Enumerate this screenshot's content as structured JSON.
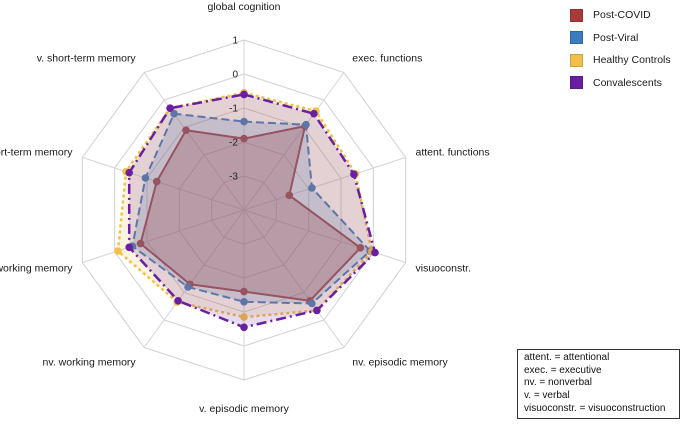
{
  "chart_data": {
    "type": "radar",
    "axes": [
      "global cognition",
      "exec. functions",
      "attent. functions",
      "visuoconstr.",
      "nv. episodic memory",
      "v. episodic memory",
      "nv. working memory",
      "v. working memory",
      "nv. short-term memory",
      "v. short-term memory"
    ],
    "rlim": [
      -4,
      1
    ],
    "tick_labels": [
      "1",
      "0",
      "-1",
      "-2",
      "-3"
    ],
    "tick_values": [
      1,
      0,
      -1,
      -2,
      -3
    ],
    "grid": true,
    "legend_position": "top-right",
    "series": [
      {
        "name": "Post-COVID",
        "values": [
          -1.9,
          -0.95,
          -2.6,
          -0.4,
          -0.7,
          -1.6,
          -1.3,
          -0.8,
          -1.3,
          -1.1
        ],
        "color": "#a93a3a",
        "fill": "rgba(169,58,58,0.32)",
        "dash": "",
        "width": 2
      },
      {
        "name": "Post-Viral",
        "values": [
          -1.4,
          -0.9,
          -1.9,
          -0.1,
          -0.6,
          -1.3,
          -1.2,
          -0.55,
          -0.95,
          -0.5
        ],
        "color": "#3b7bbf",
        "fill": "rgba(59,123,191,0.22)",
        "dash": "8,4",
        "width": 2
      },
      {
        "name": "Healthy Controls",
        "values": [
          -0.55,
          -0.4,
          -0.55,
          -0.05,
          -0.35,
          -0.85,
          -0.65,
          -0.1,
          -0.35,
          -0.3
        ],
        "color": "#f0c048",
        "fill": "rgba(240,192,72,0.18)",
        "dash": "3,3",
        "width": 2.5
      },
      {
        "name": "Convalescents",
        "values": [
          -0.6,
          -0.5,
          -0.6,
          0.05,
          -0.35,
          -0.55,
          -0.7,
          -0.45,
          -0.45,
          -0.3
        ],
        "color": "#6a1fa0",
        "fill": "rgba(106,31,160,0.16)",
        "dash": "10,4,2,4",
        "width": 2.5
      }
    ]
  },
  "legend": {
    "items": [
      {
        "name": "Post-COVID",
        "color": "#a93a3a"
      },
      {
        "name": "Post-Viral",
        "color": "#3b7bbf"
      },
      {
        "name": "Healthy Controls",
        "color": "#f0c048"
      },
      {
        "name": "Convalescents",
        "color": "#6a1fa0"
      }
    ]
  },
  "abbreviations": [
    "attent. = attentional",
    "exec. = executive",
    "nv. = nonverbal",
    "v. = verbal",
    "visuoconstr. = visuoconstruction"
  ]
}
